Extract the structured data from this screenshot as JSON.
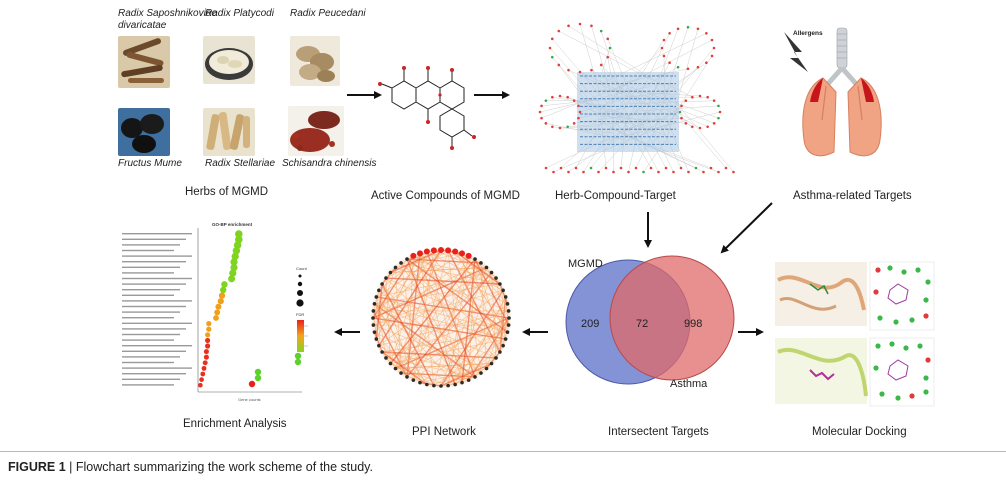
{
  "herbs": [
    {
      "name": "Radix Saposhnikoviae divaricatae"
    },
    {
      "name": "Radix Platycodi"
    },
    {
      "name": "Radix Peucedani"
    },
    {
      "name": "Fructus Mume"
    },
    {
      "name": "Radix Stellariae"
    },
    {
      "name": "Schisandra chinensis"
    }
  ],
  "steps": {
    "herbs": "Herbs of MGMD",
    "compounds": "Active Compounds of MGMD",
    "network": "Herb-Compound-Target",
    "asthma": "Asthma-related Targets",
    "enrichment": "Enrichment Analysis",
    "ppi": "PPI Network",
    "intersect": "Intersectent Targets",
    "docking": "Molecular Docking"
  },
  "lung": {
    "allergens_label": "Allergens"
  },
  "venn": {
    "left_label": "MGMD",
    "right_label": "Asthma",
    "left_only": "209",
    "overlap": "72",
    "right_only": "998",
    "left_color": "#6f7fcf",
    "right_color": "#e06a6a"
  },
  "enrichment_plot": {
    "title": "GO-BP enrichment",
    "xlabel": "Gene counts",
    "legend_count_title": "Count",
    "legend_fdr_title": "FDR"
  },
  "caption": {
    "label": "FIGURE 1",
    "separator": "|",
    "text": "Flowchart summarizing the work scheme of the study."
  },
  "colors": {
    "arrow": "#111111",
    "network_hub": "#4a80b8",
    "network_edge": "#c8c8c8",
    "ppi_edge": "#f08a3a",
    "lung": "#f0a483"
  }
}
